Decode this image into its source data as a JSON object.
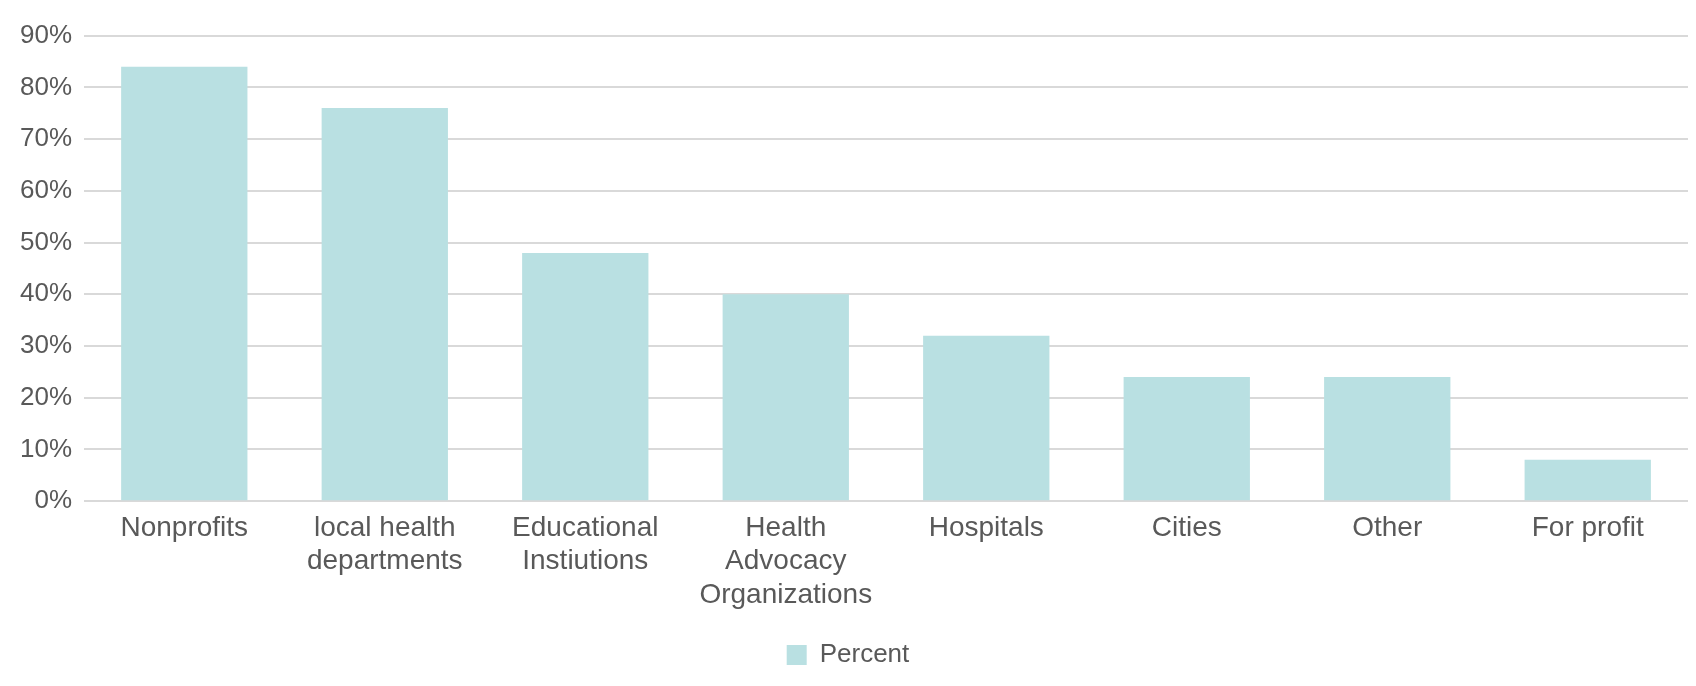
{
  "chart_data": {
    "type": "bar",
    "categories": [
      "Nonprofits",
      "local health departments",
      "Educational Instiutions",
      "Health Advocacy Organizations",
      "Hospitals",
      "Cities",
      "Other",
      "For profit"
    ],
    "series": [
      {
        "name": "Percent",
        "color": "#b9e0e2",
        "values": [
          84,
          76,
          48,
          40,
          32,
          24,
          24,
          8
        ]
      }
    ],
    "ylim": [
      0,
      90
    ],
    "yticks": [
      {
        "value": 0,
        "label": "0%"
      },
      {
        "value": 10,
        "label": "10%"
      },
      {
        "value": 20,
        "label": "20%"
      },
      {
        "value": 30,
        "label": "30%"
      },
      {
        "value": 40,
        "label": "40%"
      },
      {
        "value": 50,
        "label": "50%"
      },
      {
        "value": 60,
        "label": "60%"
      },
      {
        "value": 70,
        "label": "70%"
      },
      {
        "value": 80,
        "label": "80%"
      },
      {
        "value": 90,
        "label": "90%"
      }
    ],
    "grid": "y",
    "legend": "bottom"
  }
}
